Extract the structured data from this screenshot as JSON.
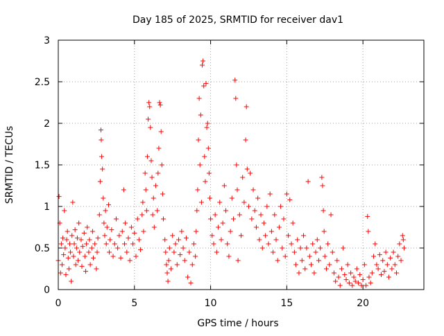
{
  "chart_data": {
    "type": "scatter",
    "title": "Day 185 of 2025, SRMTID for receiver dav1",
    "xlabel": "GPS time / hours",
    "ylabel": "SRMTID / TECUs",
    "xlim": [
      0,
      24
    ],
    "ylim": [
      0,
      3
    ],
    "xticks": [
      0,
      5,
      10,
      15,
      20
    ],
    "yticks": [
      0,
      0.5,
      1,
      1.5,
      2,
      2.5,
      3
    ],
    "ytick_labels": [
      "0",
      "0.5",
      "1",
      "1.5",
      "2",
      "2.5",
      "3"
    ],
    "grid": true,
    "marker": "plus",
    "series": [
      {
        "name": "SRMTID",
        "color": "#ff0000",
        "points": [
          [
            0.0,
            0.35
          ],
          [
            0.05,
            1.12
          ],
          [
            0.1,
            0.8
          ],
          [
            0.15,
            0.2
          ],
          [
            0.2,
            0.55
          ],
          [
            0.25,
            0.3
          ],
          [
            0.3,
            0.62
          ],
          [
            0.35,
            0.42
          ],
          [
            0.4,
            0.95
          ],
          [
            0.45,
            0.5
          ],
          [
            0.5,
            0.18
          ],
          [
            0.55,
            0.6
          ],
          [
            0.6,
            0.7
          ],
          [
            0.65,
            0.38
          ],
          [
            0.7,
            0.25
          ],
          [
            0.75,
            0.55
          ],
          [
            0.8,
            0.45
          ],
          [
            0.85,
            0.1
          ],
          [
            0.9,
            0.65
          ],
          [
            0.95,
            1.05
          ],
          [
            1.0,
            0.4
          ],
          [
            1.05,
            0.55
          ],
          [
            1.1,
            0.72
          ],
          [
            1.15,
            0.3
          ],
          [
            1.2,
            0.5
          ],
          [
            1.25,
            0.62
          ],
          [
            1.3,
            0.35
          ],
          [
            1.35,
            0.8
          ],
          [
            1.4,
            0.45
          ],
          [
            1.5,
            0.6
          ],
          [
            1.55,
            0.28
          ],
          [
            1.6,
            0.52
          ],
          [
            1.7,
            0.68
          ],
          [
            1.75,
            0.4
          ],
          [
            1.8,
            0.22
          ],
          [
            1.85,
            0.55
          ],
          [
            1.9,
            0.75
          ],
          [
            2.0,
            0.45
          ],
          [
            2.05,
            0.6
          ],
          [
            2.1,
            0.3
          ],
          [
            2.2,
            0.5
          ],
          [
            2.25,
            0.7
          ],
          [
            2.3,
            0.38
          ],
          [
            2.4,
            0.55
          ],
          [
            2.5,
            0.25
          ],
          [
            2.55,
            0.45
          ],
          [
            2.6,
            0.62
          ],
          [
            2.7,
            0.9
          ],
          [
            2.75,
            1.3
          ],
          [
            2.8,
            1.92
          ],
          [
            2.82,
            1.8
          ],
          [
            2.85,
            1.6
          ],
          [
            2.9,
            1.45
          ],
          [
            2.95,
            1.1
          ],
          [
            3.0,
            0.8
          ],
          [
            3.05,
            0.65
          ],
          [
            3.1,
            0.95
          ],
          [
            3.15,
            0.55
          ],
          [
            3.2,
            0.75
          ],
          [
            3.3,
            1.02
          ],
          [
            3.35,
            0.45
          ],
          [
            3.4,
            0.6
          ],
          [
            3.5,
            0.72
          ],
          [
            3.6,
            0.4
          ],
          [
            3.7,
            0.55
          ],
          [
            3.8,
            0.85
          ],
          [
            3.9,
            0.5
          ],
          [
            4.0,
            0.65
          ],
          [
            4.1,
            0.38
          ],
          [
            4.2,
            0.7
          ],
          [
            4.3,
            1.2
          ],
          [
            4.35,
            0.55
          ],
          [
            4.4,
            0.8
          ],
          [
            4.5,
            0.45
          ],
          [
            4.6,
            0.62
          ],
          [
            4.7,
            0.35
          ],
          [
            4.8,
            0.75
          ],
          [
            4.9,
            0.55
          ],
          [
            5.0,
            0.68
          ],
          [
            5.1,
            0.4
          ],
          [
            5.2,
            0.85
          ],
          [
            5.3,
            0.6
          ],
          [
            5.4,
            0.48
          ],
          [
            5.5,
            0.9
          ],
          [
            5.55,
            1.05
          ],
          [
            5.6,
            0.7
          ],
          [
            5.7,
            1.4
          ],
          [
            5.75,
            1.2
          ],
          [
            5.8,
            0.95
          ],
          [
            5.85,
            1.6
          ],
          [
            5.9,
            2.05
          ],
          [
            5.95,
            2.25
          ],
          [
            6.0,
            2.2
          ],
          [
            6.05,
            1.95
          ],
          [
            6.1,
            1.55
          ],
          [
            6.15,
            1.35
          ],
          [
            6.2,
            0.9
          ],
          [
            6.25,
            1.1
          ],
          [
            6.3,
            0.75
          ],
          [
            6.4,
            1.25
          ],
          [
            6.5,
            0.95
          ],
          [
            6.55,
            1.4
          ],
          [
            6.6,
            1.7
          ],
          [
            6.65,
            2.25
          ],
          [
            6.7,
            2.22
          ],
          [
            6.75,
            1.9
          ],
          [
            6.8,
            1.5
          ],
          [
            6.85,
            1.15
          ],
          [
            6.9,
            0.85
          ],
          [
            7.0,
            0.6
          ],
          [
            7.05,
            0.45
          ],
          [
            7.1,
            0.3
          ],
          [
            7.15,
            0.2
          ],
          [
            7.2,
            0.1
          ],
          [
            7.25,
            0.35
          ],
          [
            7.3,
            0.5
          ],
          [
            7.4,
            0.25
          ],
          [
            7.5,
            0.65
          ],
          [
            7.6,
            0.45
          ],
          [
            7.7,
            0.55
          ],
          [
            7.8,
            0.3
          ],
          [
            7.9,
            0.6
          ],
          [
            8.0,
            0.42
          ],
          [
            8.1,
            0.7
          ],
          [
            8.2,
            0.5
          ],
          [
            8.3,
            0.35
          ],
          [
            8.4,
            0.62
          ],
          [
            8.5,
            0.15
          ],
          [
            8.6,
            0.45
          ],
          [
            8.7,
            0.08
          ],
          [
            8.8,
            0.3
          ],
          [
            8.9,
            0.55
          ],
          [
            9.0,
            0.4
          ],
          [
            9.05,
            0.7
          ],
          [
            9.1,
            0.95
          ],
          [
            9.15,
            1.2
          ],
          [
            9.2,
            1.8
          ],
          [
            9.25,
            2.3
          ],
          [
            9.3,
            1.5
          ],
          [
            9.35,
            2.1
          ],
          [
            9.4,
            1.05
          ],
          [
            9.45,
            2.7
          ],
          [
            9.5,
            2.75
          ],
          [
            9.55,
            2.45
          ],
          [
            9.6,
            1.6
          ],
          [
            9.65,
            1.3
          ],
          [
            9.7,
            2.48
          ],
          [
            9.75,
            1.95
          ],
          [
            9.8,
            2.0
          ],
          [
            9.85,
            1.7
          ],
          [
            9.9,
            1.4
          ],
          [
            9.95,
            1.1
          ],
          [
            10.0,
            0.85
          ],
          [
            10.1,
            0.65
          ],
          [
            10.2,
            0.55
          ],
          [
            10.3,
            0.9
          ],
          [
            10.4,
            0.45
          ],
          [
            10.5,
            0.75
          ],
          [
            10.6,
            1.05
          ],
          [
            10.7,
            0.6
          ],
          [
            10.8,
            0.8
          ],
          [
            10.9,
            1.25
          ],
          [
            11.0,
            0.95
          ],
          [
            11.1,
            0.55
          ],
          [
            11.2,
            0.4
          ],
          [
            11.3,
            0.7
          ],
          [
            11.4,
            1.1
          ],
          [
            11.5,
            0.85
          ],
          [
            11.6,
            2.52
          ],
          [
            11.65,
            2.3
          ],
          [
            11.7,
            1.5
          ],
          [
            11.75,
            1.2
          ],
          [
            11.8,
            0.35
          ],
          [
            11.9,
            0.9
          ],
          [
            12.0,
            0.65
          ],
          [
            12.1,
            1.35
          ],
          [
            12.2,
            1.05
          ],
          [
            12.3,
            1.8
          ],
          [
            12.35,
            2.2
          ],
          [
            12.4,
            1.45
          ],
          [
            12.5,
            1.0
          ],
          [
            12.6,
            1.4
          ],
          [
            12.7,
            0.85
          ],
          [
            12.8,
            1.2
          ],
          [
            12.9,
            0.95
          ],
          [
            13.0,
            0.75
          ],
          [
            13.1,
            1.1
          ],
          [
            13.2,
            0.6
          ],
          [
            13.3,
            0.9
          ],
          [
            13.4,
            0.5
          ],
          [
            13.5,
            0.8
          ],
          [
            13.6,
            0.65
          ],
          [
            13.7,
            1.0
          ],
          [
            13.8,
            0.55
          ],
          [
            13.9,
            1.15
          ],
          [
            14.0,
            0.7
          ],
          [
            14.1,
            0.45
          ],
          [
            14.2,
            0.9
          ],
          [
            14.3,
            0.6
          ],
          [
            14.4,
            0.35
          ],
          [
            14.5,
            0.75
          ],
          [
            14.6,
            1.0
          ],
          [
            14.7,
            0.5
          ],
          [
            14.8,
            0.85
          ],
          [
            14.9,
            0.4
          ],
          [
            15.0,
            1.15
          ],
          [
            15.1,
            0.65
          ],
          [
            15.2,
            1.08
          ],
          [
            15.3,
            0.55
          ],
          [
            15.4,
            0.8
          ],
          [
            15.5,
            0.45
          ],
          [
            15.6,
            0.3
          ],
          [
            15.7,
            0.6
          ],
          [
            15.8,
            0.2
          ],
          [
            15.9,
            0.5
          ],
          [
            16.0,
            0.35
          ],
          [
            16.1,
            0.65
          ],
          [
            16.2,
            0.25
          ],
          [
            16.3,
            0.5
          ],
          [
            16.4,
            1.3
          ],
          [
            16.5,
            0.4
          ],
          [
            16.6,
            0.3
          ],
          [
            16.7,
            0.55
          ],
          [
            16.8,
            0.2
          ],
          [
            16.9,
            0.45
          ],
          [
            17.0,
            0.6
          ],
          [
            17.1,
            0.35
          ],
          [
            17.2,
            0.5
          ],
          [
            17.3,
            1.35
          ],
          [
            17.35,
            1.25
          ],
          [
            17.4,
            0.95
          ],
          [
            17.45,
            0.7
          ],
          [
            17.5,
            0.4
          ],
          [
            17.6,
            0.25
          ],
          [
            17.7,
            0.55
          ],
          [
            17.8,
            0.3
          ],
          [
            17.9,
            0.9
          ],
          [
            18.0,
            0.45
          ],
          [
            18.1,
            0.2
          ],
          [
            18.2,
            0.1
          ],
          [
            18.3,
            0.35
          ],
          [
            18.4,
            0.15
          ],
          [
            18.5,
            0.05
          ],
          [
            18.6,
            0.25
          ],
          [
            18.7,
            0.5
          ],
          [
            18.8,
            0.18
          ],
          [
            18.9,
            0.12
          ],
          [
            19.0,
            0.3
          ],
          [
            19.1,
            0.08
          ],
          [
            19.2,
            0.2
          ],
          [
            19.3,
            0.05
          ],
          [
            19.4,
            0.15
          ],
          [
            19.5,
            0.1
          ],
          [
            19.6,
            0.25
          ],
          [
            19.7,
            0.08
          ],
          [
            19.8,
            0.18
          ],
          [
            19.9,
            0.05
          ],
          [
            20.0,
            0.12
          ],
          [
            20.1,
            0.3
          ],
          [
            20.2,
            0.05
          ],
          [
            20.3,
            0.88
          ],
          [
            20.35,
            0.7
          ],
          [
            20.4,
            0.15
          ],
          [
            20.5,
            0.08
          ],
          [
            20.6,
            0.2
          ],
          [
            20.7,
            0.4
          ],
          [
            20.8,
            0.55
          ],
          [
            20.9,
            0.3
          ],
          [
            21.0,
            0.25
          ],
          [
            21.1,
            0.42
          ],
          [
            21.2,
            0.18
          ],
          [
            21.3,
            0.35
          ],
          [
            21.4,
            0.22
          ],
          [
            21.5,
            0.45
          ],
          [
            21.6,
            0.3
          ],
          [
            21.7,
            0.15
          ],
          [
            21.8,
            0.38
          ],
          [
            21.9,
            0.25
          ],
          [
            22.0,
            0.45
          ],
          [
            22.1,
            0.3
          ],
          [
            22.2,
            0.2
          ],
          [
            22.3,
            0.4
          ],
          [
            22.4,
            0.55
          ],
          [
            22.5,
            0.35
          ],
          [
            22.6,
            0.65
          ],
          [
            22.65,
            0.6
          ],
          [
            22.7,
            0.5
          ]
        ]
      }
    ]
  }
}
